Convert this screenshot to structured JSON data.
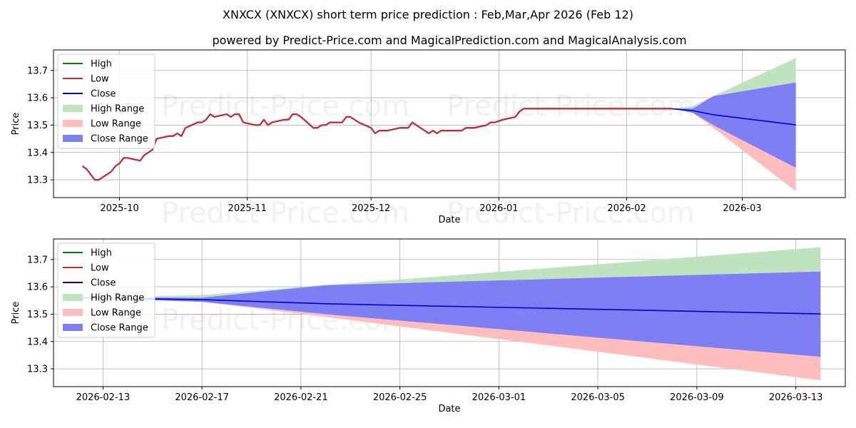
{
  "title": "XNXCX (XNXCX) short term price prediction : Feb,Mar,Apr 2026 (Feb 12)",
  "subtitle": "powered by Predict-Price.com and MagicalPrediction.com and MagicalAnalysis.com",
  "watermark": "Predict-Price.com",
  "colors": {
    "high": "#008000",
    "low": "#d62728",
    "close": "#0000cc",
    "high_range": "#bfe3bf",
    "low_range": "#ffbdbd",
    "close_range": "#7f7ff5"
  },
  "chart_data": [
    {
      "type": "line",
      "xlabel": "Date",
      "ylabel": "Price",
      "ylim": [
        13.235,
        13.775
      ],
      "x_range": [
        "2025-09-15",
        "2026-03-26"
      ],
      "xticks": [
        "2025-10-01",
        "2025-11-01",
        "2025-12-01",
        "2026-01-01",
        "2026-02-01",
        "2026-03-01"
      ],
      "xtick_labels": [
        "2025-10",
        "2025-11",
        "2025-12",
        "2026-01",
        "2026-02",
        "2026-03"
      ],
      "yticks": [
        13.3,
        13.4,
        13.5,
        13.6,
        13.7
      ],
      "ytick_labels": [
        "13.3",
        "13.4",
        "13.5",
        "13.6",
        "13.7"
      ],
      "grid": true,
      "legend": {
        "position": "upper left",
        "entries": [
          "High",
          "Low",
          "Close",
          "High Range",
          "Low Range",
          "Close Range"
        ]
      },
      "history": {
        "x": [
          "2025-09-22",
          "2025-09-23",
          "2025-09-24",
          "2025-09-25",
          "2025-09-26",
          "2025-09-29",
          "2025-09-30",
          "2025-10-01",
          "2025-10-02",
          "2025-10-03",
          "2025-10-06",
          "2025-10-07",
          "2025-10-08",
          "2025-10-09",
          "2025-10-10",
          "2025-10-13",
          "2025-10-14",
          "2025-10-15",
          "2025-10-16",
          "2025-10-17",
          "2025-10-20",
          "2025-10-21",
          "2025-10-22",
          "2025-10-23",
          "2025-10-24",
          "2025-10-27",
          "2025-10-28",
          "2025-10-29",
          "2025-10-30",
          "2025-10-31",
          "2025-11-03",
          "2025-11-04",
          "2025-11-05",
          "2025-11-06",
          "2025-11-07",
          "2025-11-10",
          "2025-11-11",
          "2025-11-12",
          "2025-11-13",
          "2025-11-14",
          "2025-11-17",
          "2025-11-18",
          "2025-11-19",
          "2025-11-20",
          "2025-11-21",
          "2025-11-24",
          "2025-11-25",
          "2025-11-26",
          "2025-11-28",
          "2025-12-01",
          "2025-12-02",
          "2025-12-03",
          "2025-12-04",
          "2025-12-05",
          "2025-12-08",
          "2025-12-09",
          "2025-12-10",
          "2025-12-11",
          "2025-12-12",
          "2025-12-15",
          "2025-12-16",
          "2025-12-17",
          "2025-12-18",
          "2025-12-19",
          "2025-12-22",
          "2025-12-23",
          "2025-12-24",
          "2025-12-26",
          "2025-12-29",
          "2025-12-30",
          "2025-12-31",
          "2026-01-02",
          "2026-01-05",
          "2026-01-06",
          "2026-01-07",
          "2026-01-08",
          "2026-02-12"
        ],
        "high": [
          13.35,
          13.34,
          13.32,
          13.3,
          13.3,
          13.33,
          13.35,
          13.36,
          13.38,
          13.38,
          13.37,
          13.39,
          13.4,
          13.41,
          13.45,
          13.46,
          13.46,
          13.47,
          13.46,
          13.49,
          13.51,
          13.51,
          13.52,
          13.54,
          13.53,
          13.54,
          13.53,
          13.54,
          13.54,
          13.51,
          13.5,
          13.5,
          13.52,
          13.5,
          13.51,
          13.52,
          13.52,
          13.54,
          13.54,
          13.53,
          13.49,
          13.49,
          13.5,
          13.5,
          13.51,
          13.51,
          13.53,
          13.53,
          13.51,
          13.49,
          13.47,
          13.48,
          13.48,
          13.48,
          13.49,
          13.49,
          13.49,
          13.51,
          13.5,
          13.47,
          13.48,
          13.47,
          13.48,
          13.48,
          13.48,
          13.48,
          13.49,
          13.49,
          13.5,
          13.51,
          13.51,
          13.52,
          13.53,
          13.55,
          13.56,
          13.56,
          13.56
        ],
        "low": [
          13.35,
          13.34,
          13.32,
          13.3,
          13.3,
          13.33,
          13.35,
          13.36,
          13.38,
          13.38,
          13.37,
          13.39,
          13.4,
          13.41,
          13.45,
          13.46,
          13.46,
          13.47,
          13.46,
          13.49,
          13.51,
          13.51,
          13.52,
          13.54,
          13.53,
          13.54,
          13.53,
          13.54,
          13.54,
          13.51,
          13.5,
          13.5,
          13.52,
          13.5,
          13.51,
          13.52,
          13.52,
          13.54,
          13.54,
          13.53,
          13.49,
          13.49,
          13.5,
          13.5,
          13.51,
          13.51,
          13.53,
          13.53,
          13.51,
          13.49,
          13.47,
          13.48,
          13.48,
          13.48,
          13.49,
          13.49,
          13.49,
          13.51,
          13.5,
          13.47,
          13.48,
          13.47,
          13.48,
          13.48,
          13.48,
          13.48,
          13.49,
          13.49,
          13.5,
          13.51,
          13.51,
          13.52,
          13.53,
          13.55,
          13.56,
          13.56,
          13.56
        ],
        "close": [
          13.35,
          13.34,
          13.32,
          13.3,
          13.3,
          13.33,
          13.35,
          13.36,
          13.38,
          13.38,
          13.37,
          13.39,
          13.4,
          13.41,
          13.45,
          13.46,
          13.46,
          13.47,
          13.46,
          13.49,
          13.51,
          13.51,
          13.52,
          13.54,
          13.53,
          13.54,
          13.53,
          13.54,
          13.54,
          13.51,
          13.5,
          13.5,
          13.52,
          13.5,
          13.51,
          13.52,
          13.52,
          13.54,
          13.54,
          13.53,
          13.49,
          13.49,
          13.5,
          13.5,
          13.51,
          13.51,
          13.53,
          13.53,
          13.51,
          13.49,
          13.47,
          13.48,
          13.48,
          13.48,
          13.49,
          13.49,
          13.49,
          13.51,
          13.5,
          13.47,
          13.48,
          13.47,
          13.48,
          13.48,
          13.48,
          13.48,
          13.49,
          13.49,
          13.5,
          13.51,
          13.51,
          13.52,
          13.53,
          13.55,
          13.56,
          13.56,
          13.56
        ]
      },
      "forecast": {
        "x": [
          "2026-02-12",
          "2026-02-17",
          "2026-02-22",
          "2026-03-14"
        ],
        "high_upper": [
          13.56,
          13.57,
          13.606,
          13.745
        ],
        "high_lower": [
          13.56,
          13.55,
          13.525,
          13.46
        ],
        "low_upper": [
          13.56,
          13.55,
          13.525,
          13.46
        ],
        "low_lower": [
          13.56,
          13.545,
          13.49,
          13.258
        ],
        "close_upper": [
          13.56,
          13.56,
          13.606,
          13.656
        ],
        "close_lower": [
          13.56,
          13.545,
          13.5,
          13.344
        ],
        "close": [
          13.56,
          13.553,
          13.538,
          13.501
        ]
      }
    },
    {
      "type": "line",
      "xlabel": "Date",
      "ylabel": "Price",
      "ylim": [
        13.235,
        13.775
      ],
      "x_range": [
        "2026-02-11",
        "2026-03-15"
      ],
      "xticks": [
        "2026-02-13",
        "2026-02-17",
        "2026-02-21",
        "2026-02-25",
        "2026-03-01",
        "2026-03-05",
        "2026-03-09",
        "2026-03-13"
      ],
      "xtick_labels": [
        "2026-02-13",
        "2026-02-17",
        "2026-02-21",
        "2026-02-25",
        "2026-03-01",
        "2026-03-05",
        "2026-03-09",
        "2026-03-13"
      ],
      "yticks": [
        13.3,
        13.4,
        13.5,
        13.6,
        13.7
      ],
      "ytick_labels": [
        "13.3",
        "13.4",
        "13.5",
        "13.6",
        "13.7"
      ],
      "grid": true,
      "legend": {
        "position": "upper left",
        "entries": [
          "High",
          "Low",
          "Close",
          "High Range",
          "Low Range",
          "Close Range"
        ]
      },
      "forecast": {
        "x": [
          "2026-02-12",
          "2026-02-17",
          "2026-02-22",
          "2026-03-14"
        ],
        "high_upper": [
          13.56,
          13.57,
          13.606,
          13.745
        ],
        "high_lower": [
          13.56,
          13.55,
          13.525,
          13.46
        ],
        "low_upper": [
          13.56,
          13.55,
          13.525,
          13.46
        ],
        "low_lower": [
          13.56,
          13.545,
          13.49,
          13.258
        ],
        "close_upper": [
          13.56,
          13.56,
          13.606,
          13.656
        ],
        "close_lower": [
          13.56,
          13.545,
          13.5,
          13.344
        ],
        "close": [
          13.56,
          13.553,
          13.538,
          13.501
        ]
      }
    }
  ]
}
